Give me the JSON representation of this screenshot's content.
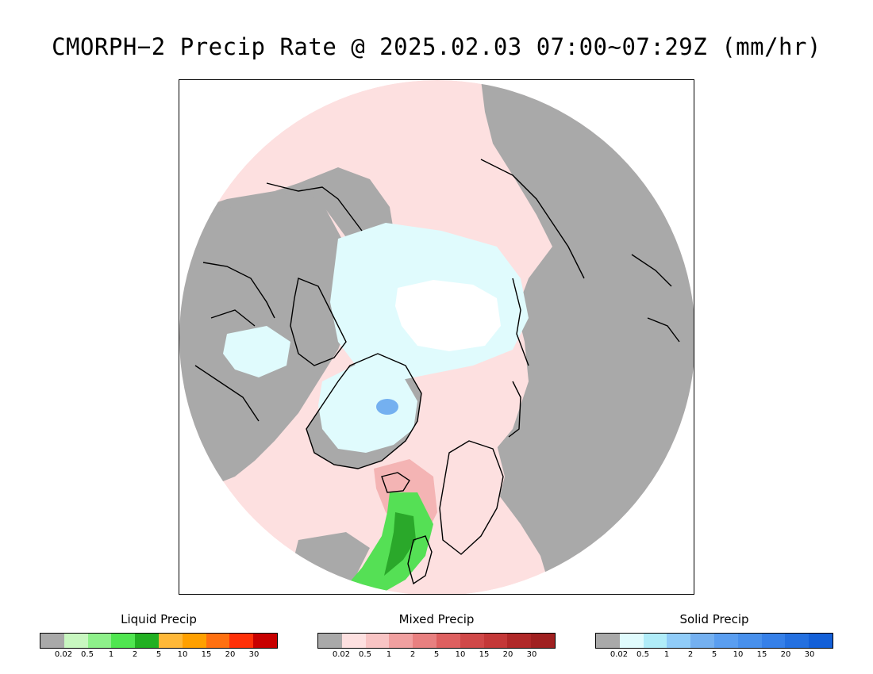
{
  "title": "CMORPH−2 Precip Rate @ 2025.02.03 07:00~07:29Z (mm/hr)",
  "map": {
    "projection": "polar-stereographic-north",
    "colors": {
      "no_precip": "#a9a9a9",
      "mixed_light": "#fde0e0",
      "mixed_mid": "#f4b4b4",
      "solid_light": "#e0fbfd",
      "solid_none": "#ffffff",
      "solid_blue": "#74b0f0",
      "liquid_green": "#55e055",
      "liquid_green_dark": "#2aa82a",
      "coast": "#000000"
    }
  },
  "legends": [
    {
      "name": "liquid",
      "title": "Liquid Precip",
      "colors": [
        "#a9a9a9",
        "#c8f7c0",
        "#8ef08a",
        "#50e650",
        "#22b022",
        "#ffb838",
        "#ffa000",
        "#ff7010",
        "#ff3008",
        "#c80000"
      ],
      "ticks": [
        "0.02",
        "0.5",
        "1",
        "2",
        "5",
        "10",
        "15",
        "20",
        "30"
      ]
    },
    {
      "name": "mixed",
      "title": "Mixed Precip",
      "colors": [
        "#a9a9a9",
        "#fde0e0",
        "#f8c4c4",
        "#f0a0a0",
        "#e88080",
        "#de6060",
        "#d04848",
        "#c43838",
        "#b02828",
        "#a02020"
      ],
      "ticks": [
        "0.02",
        "0.5",
        "1",
        "2",
        "5",
        "10",
        "15",
        "20",
        "30"
      ]
    },
    {
      "name": "solid",
      "title": "Solid Precip",
      "colors": [
        "#a9a9a9",
        "#e0fbfd",
        "#b0ecf8",
        "#90ccf8",
        "#74b0f0",
        "#5a9ef0",
        "#4890ec",
        "#3680e8",
        "#2470e0",
        "#1460d8"
      ],
      "ticks": [
        "0.02",
        "0.5",
        "1",
        "2",
        "5",
        "10",
        "15",
        "20",
        "30"
      ]
    }
  ]
}
